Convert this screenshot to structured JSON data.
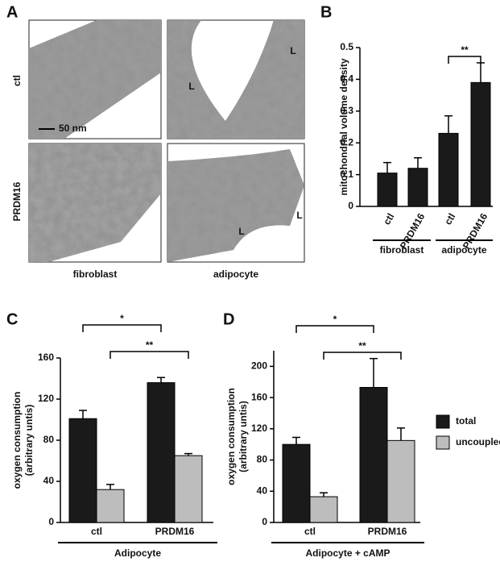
{
  "panel_a": {
    "panel": "A",
    "rows": [
      "ctl",
      "PRDM16"
    ],
    "columns": [
      "fibroblast",
      "adipocyte"
    ],
    "scale_bar": "50 nm",
    "lumen_labels": [
      "L",
      "L",
      "L",
      "L"
    ]
  },
  "chart_data": [
    {
      "type": "bar",
      "panel": "B",
      "ylabel": "mitochondrial volume density",
      "categories": [
        "ctl",
        "PRDM16",
        "ctl",
        "PRDM16"
      ],
      "values": [
        0.105,
        0.12,
        0.23,
        0.39
      ],
      "errors": [
        0.033,
        0.033,
        0.055,
        0.062
      ],
      "color": "#1a1a1a",
      "groups": [
        "fibroblast",
        "adipocyte"
      ],
      "annotations": [
        "**"
      ],
      "ylim": [
        0,
        0.5
      ],
      "yticks": [
        0,
        0.1,
        0.2,
        0.3,
        0.4,
        0.5
      ]
    },
    {
      "type": "bar",
      "panel": "C",
      "ylabel": [
        "oxygen consumption",
        "(arbitrary untis)"
      ],
      "categories": [
        "ctl",
        "PRDM16"
      ],
      "series": [
        {
          "name": "total",
          "color": "#1a1a1a",
          "values": [
            101,
            136
          ],
          "errors": [
            8,
            5
          ]
        },
        {
          "name": "uncoupled",
          "color": "#bdbdbd",
          "values": [
            32,
            65
          ],
          "errors": [
            5,
            2
          ]
        }
      ],
      "xlabel": "Adipocyte",
      "annotations": [
        "*",
        "**"
      ],
      "ylim": [
        0,
        160
      ],
      "yticks": [
        0,
        40,
        80,
        120,
        160
      ]
    },
    {
      "type": "bar",
      "panel": "D",
      "ylabel": [
        "oxygen consumption",
        "(arbitrary untis)"
      ],
      "categories": [
        "ctl",
        "PRDM16"
      ],
      "series": [
        {
          "name": "total",
          "color": "#1a1a1a",
          "values": [
            100,
            173
          ],
          "errors": [
            9,
            37
          ]
        },
        {
          "name": "uncoupled",
          "color": "#bdbdbd",
          "values": [
            33,
            105
          ],
          "errors": [
            5,
            16
          ]
        }
      ],
      "xlabel": "Adipocyte + cAMP",
      "annotations": [
        "*",
        "**"
      ],
      "legend": "right",
      "ylim": [
        0,
        220
      ],
      "yticks": [
        0,
        40,
        80,
        120,
        160,
        200
      ]
    }
  ]
}
